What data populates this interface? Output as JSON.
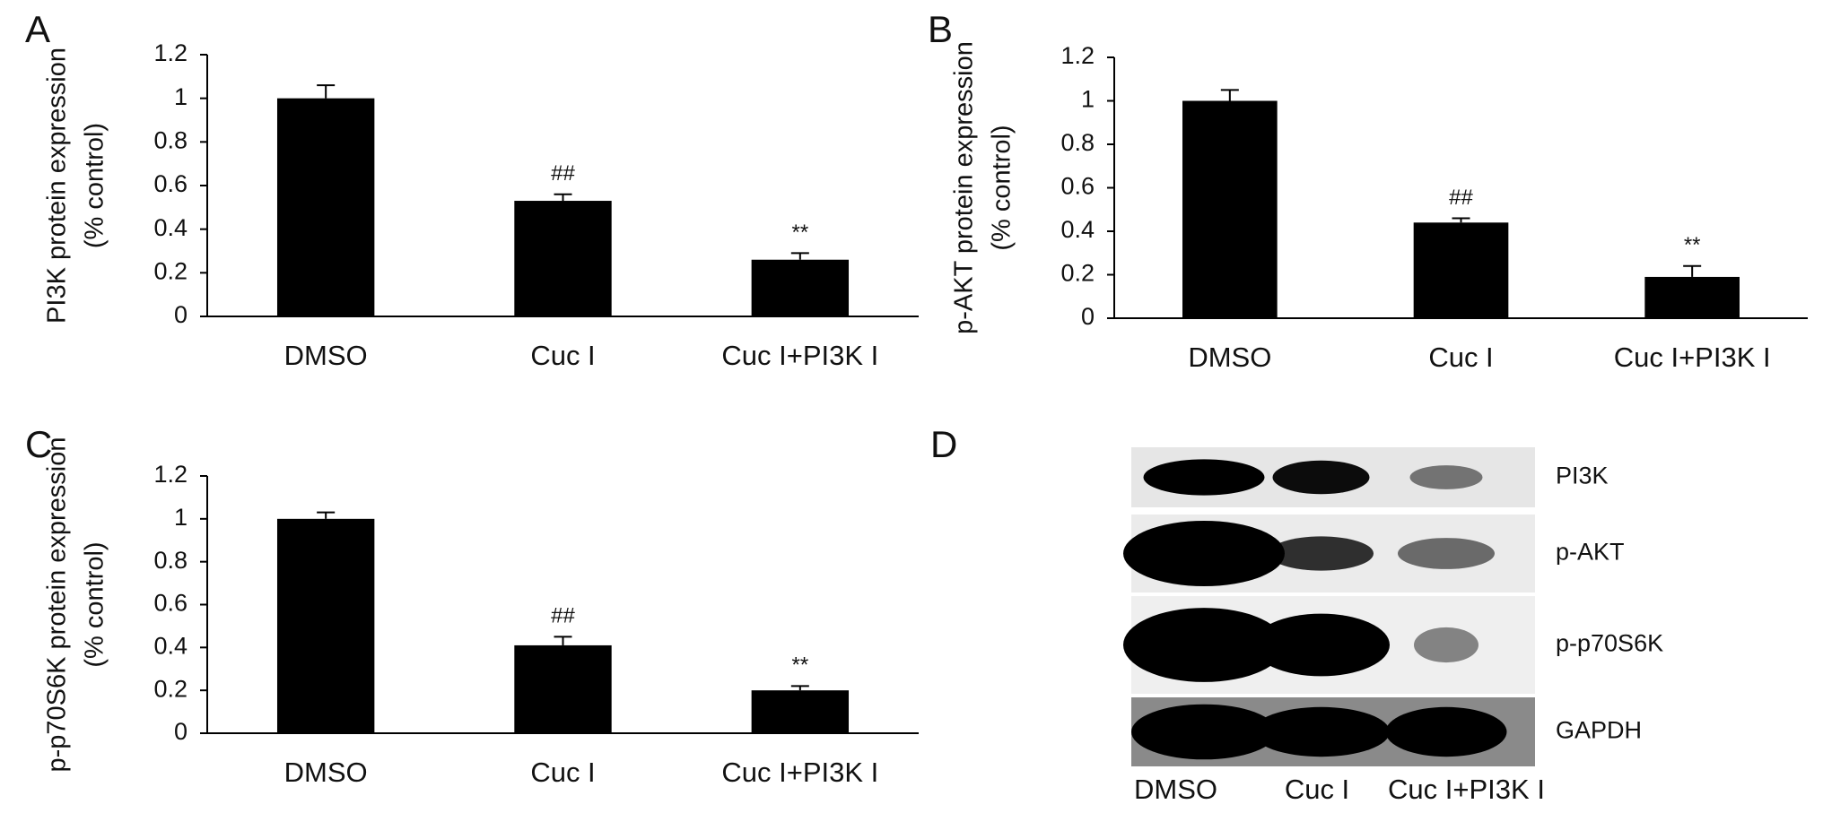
{
  "chart_data": [
    {
      "type": "bar",
      "panel": "A",
      "ylabel": [
        "PI3K protein expression",
        "(% control)"
      ],
      "categories": [
        "DMSO",
        "Cuc I",
        "Cuc I+PI3K I"
      ],
      "values": [
        1.0,
        0.53,
        0.26
      ],
      "errors": [
        0.06,
        0.03,
        0.03
      ],
      "annotations": [
        null,
        "##",
        "**"
      ],
      "color": "#000000",
      "ylim": [
        0,
        1.2
      ],
      "yticks": [
        0,
        0.2,
        0.4,
        0.6,
        0.8,
        1,
        1.2
      ]
    },
    {
      "type": "bar",
      "panel": "B",
      "ylabel": [
        "p-AKT protein expression",
        "(% control)"
      ],
      "categories": [
        "DMSO",
        "Cuc I",
        "Cuc I+PI3K I"
      ],
      "values": [
        1.0,
        0.44,
        0.19
      ],
      "errors": [
        0.05,
        0.02,
        0.05
      ],
      "annotations": [
        null,
        "##",
        "**"
      ],
      "color": "#000000",
      "ylim": [
        0,
        1.2
      ],
      "yticks": [
        0,
        0.2,
        0.4,
        0.6,
        0.8,
        1,
        1.2
      ]
    },
    {
      "type": "bar",
      "panel": "C",
      "ylabel": [
        "p-p70S6K protein expression",
        "(% control)"
      ],
      "categories": [
        "DMSO",
        "Cuc I",
        "Cuc I+PI3K I"
      ],
      "values": [
        1.0,
        0.41,
        0.2
      ],
      "errors": [
        0.03,
        0.04,
        0.02
      ],
      "annotations": [
        null,
        "##",
        "**"
      ],
      "color": "#000000",
      "ylim": [
        0,
        1.2
      ],
      "yticks": [
        0,
        0.2,
        0.4,
        0.6,
        0.8,
        1,
        1.2
      ]
    },
    {
      "type": "blot",
      "panel": "D",
      "rows": [
        "PI3K",
        "p-AKT",
        "p-p70S6K",
        "GAPDH"
      ],
      "categories": [
        "DMSO",
        "Cuc I",
        "Cuc I+PI3K I"
      ]
    }
  ]
}
